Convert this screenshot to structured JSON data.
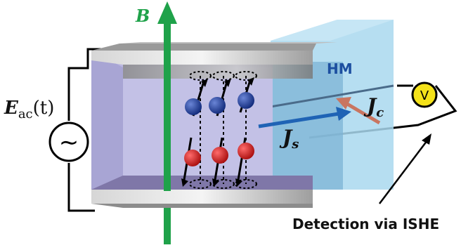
{
  "labels": {
    "field": "B",
    "source": "E",
    "source_sub": "ac",
    "source_arg": "(t)",
    "spin_current": "J",
    "spin_current_sub": "s",
    "charge_current": "J",
    "charge_current_sub": "c",
    "heavy_metal": "HM",
    "voltmeter": "V",
    "detection": "Detection via ISHE",
    "ac_symbol": "∼"
  },
  "colors": {
    "field_arrow": "#1fa24a",
    "spin_current_arrow": "#1f63b5",
    "charge_current_arrow": "#c97560",
    "hm_block": "#a9d8ee",
    "magnet_block": "#b7b4de",
    "electrode": "#b9b9b9",
    "up_spin": "#1d3f9e",
    "down_spin": "#d11a1a",
    "voltmeter": "#f4e21a",
    "hm_label": "#1d4fa0"
  },
  "spins": [
    {
      "type": "up"
    },
    {
      "type": "up"
    },
    {
      "type": "up"
    },
    {
      "type": "down"
    },
    {
      "type": "down"
    },
    {
      "type": "down"
    }
  ]
}
